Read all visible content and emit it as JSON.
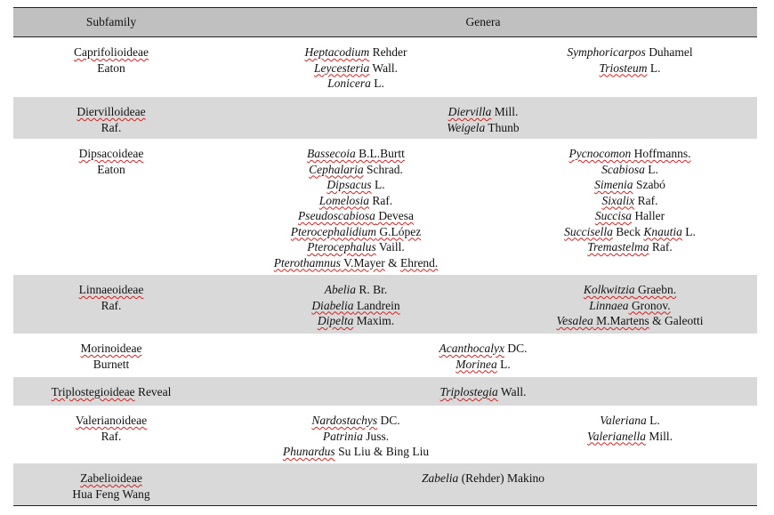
{
  "header": {
    "subfamily": "Subfamily",
    "genera": "Genera"
  },
  "rows": [
    {
      "subfamily": [
        [
          {
            "t": "Caprifolioideae",
            "sp": true
          }
        ],
        [
          {
            "t": "Eaton"
          }
        ]
      ],
      "shade": false,
      "height": 67,
      "col1": [
        [
          {
            "t": "Heptacodium",
            "i": true,
            "sp": true
          },
          {
            "t": " Rehder"
          }
        ],
        [
          {
            "t": "Leycesteria",
            "i": true,
            "sp": true
          },
          {
            "t": " Wall."
          }
        ],
        [
          {
            "t": "Lonicera",
            "i": true
          },
          {
            "t": " L."
          }
        ]
      ],
      "col2": [
        [
          {
            "t": "Symphoricarpos",
            "i": true
          },
          {
            "t": " Duhamel"
          }
        ],
        [
          {
            "t": "Triosteum",
            "i": true,
            "sp": true
          },
          {
            "t": " L."
          }
        ]
      ]
    },
    {
      "subfamily": [
        [
          {
            "t": "Diervilloideae",
            "sp": true
          }
        ],
        [
          {
            "t": "Raf."
          }
        ]
      ],
      "shade": true,
      "height": 47,
      "merged": [
        [
          {
            "t": "Diervilla",
            "i": true,
            "sp": true
          },
          {
            "t": " Mill."
          }
        ],
        [
          {
            "t": "Weigela",
            "i": true
          },
          {
            "t": " Thunb"
          }
        ]
      ]
    },
    {
      "subfamily": [
        [
          {
            "t": "Dipsacoideae",
            "sp": true
          }
        ],
        [
          {
            "t": "Eaton"
          }
        ]
      ],
      "shade": false,
      "height": 153,
      "col1": [
        [
          {
            "t": "Bassecoia",
            "i": true,
            "sp": true
          },
          {
            "t": " B.L.Burtt",
            "sp": true
          }
        ],
        [
          {
            "t": "Cephalaria",
            "i": true,
            "sp": true
          },
          {
            "t": " Schrad."
          }
        ],
        [
          {
            "t": "Dipsacus",
            "i": true,
            "sp": true
          },
          {
            "t": " L."
          }
        ],
        [
          {
            "t": "Lomelosia",
            "i": true,
            "sp": true
          },
          {
            "t": " Raf."
          }
        ],
        [
          {
            "t": "Pseudoscabiosa",
            "i": true,
            "sp": true
          },
          {
            "t": " Devesa",
            "sp": true
          }
        ],
        [
          {
            "t": "Pterocephalidium",
            "i": true,
            "sp": true
          },
          {
            "t": " G.López",
            "sp": true
          }
        ],
        [
          {
            "t": "Pterocephalus",
            "i": true,
            "sp": true
          },
          {
            "t": " Vaill."
          }
        ],
        [
          {
            "t": "Pterothamnus",
            "i": true,
            "sp": true
          },
          {
            "t": " V.Mayer",
            "sp": true
          },
          {
            "t": " & "
          },
          {
            "t": "Ehrend.",
            "sp": true
          }
        ]
      ],
      "col2": [
        [
          {
            "t": "Pycnocomon",
            "i": true,
            "sp": true
          },
          {
            "t": " Hoffmanns.",
            "sp": true
          }
        ],
        [
          {
            "t": "Scabiosa",
            "i": true
          },
          {
            "t": " L."
          }
        ],
        [
          {
            "t": "Simenia",
            "i": true,
            "sp": true
          },
          {
            "t": " Szabó"
          }
        ],
        [
          {
            "t": "Sixalix",
            "i": true,
            "sp": true
          },
          {
            "t": " Raf."
          }
        ],
        [
          {
            "t": "Succisa",
            "i": true,
            "sp": true
          },
          {
            "t": " Haller"
          }
        ],
        [
          {
            "t": "Succisella",
            "i": true,
            "sp": true
          },
          {
            "t": " Beck "
          },
          {
            "t": "Knautia",
            "i": true,
            "sp": true
          },
          {
            "t": " L."
          }
        ],
        [
          {
            "t": "Tremastelma",
            "i": true,
            "sp": true
          },
          {
            "t": " Raf."
          }
        ]
      ]
    },
    {
      "subfamily": [
        [
          {
            "t": "Linnaeoideae",
            "sp": true
          }
        ],
        [
          {
            "t": "Raf."
          }
        ]
      ],
      "shade": true,
      "height": 66,
      "col1": [
        [
          {
            "t": "Abelia",
            "i": true
          },
          {
            "t": " R. Br."
          }
        ],
        [
          {
            "t": "Diabelia",
            "i": true,
            "sp": true
          },
          {
            "t": " Landrein",
            "sp": true
          }
        ],
        [
          {
            "t": "Dipelta",
            "i": true,
            "sp": true
          },
          {
            "t": " Maxim."
          }
        ]
      ],
      "col2": [
        [
          {
            "t": "Kolkwitzia",
            "i": true,
            "sp": true
          },
          {
            "t": " Graebn.",
            "sp": true
          }
        ],
        [
          {
            "t": "Linnaea",
            "i": true
          },
          {
            "t": " Gronov.",
            "sp": true
          }
        ],
        [
          {
            "t": "Vesalea",
            "i": true,
            "sp": true
          },
          {
            "t": " M.Martens",
            "sp": true
          },
          {
            "t": " & Galeotti"
          }
        ]
      ]
    },
    {
      "subfamily": [
        [
          {
            "t": "Morinoideae",
            "sp": true
          }
        ],
        [
          {
            "t": "Burnett"
          }
        ]
      ],
      "shade": false,
      "height": 49,
      "merged": [
        [
          {
            "t": "Acanthocalyx",
            "i": true,
            "sp": true
          },
          {
            "t": " DC."
          }
        ],
        [
          {
            "t": "Morinea",
            "i": true,
            "sp": true
          },
          {
            "t": " L."
          }
        ]
      ]
    },
    {
      "subfamily": [
        [
          {
            "t": "Triplostegioideae",
            "sp": true
          },
          {
            "t": " Reveal"
          }
        ]
      ],
      "shade": true,
      "height": 32,
      "merged": [
        [
          {
            "t": "Triplostegia",
            "i": true,
            "sp": true
          },
          {
            "t": " Wall."
          }
        ]
      ]
    },
    {
      "subfamily": [
        [
          {
            "t": "Valerianoideae",
            "sp": true
          }
        ],
        [
          {
            "t": "Raf."
          }
        ]
      ],
      "shade": false,
      "height": 65,
      "col1": [
        [
          {
            "t": "Nardostachys",
            "i": true,
            "sp": true
          },
          {
            "t": " DC."
          }
        ],
        [
          {
            "t": "Patrinia",
            "i": true
          },
          {
            "t": " Juss."
          }
        ],
        [
          {
            "t": "Phunardus",
            "i": true,
            "sp": true
          },
          {
            "t": " Su Liu & Bing Liu"
          }
        ]
      ],
      "col2": [
        [
          {
            "t": "Valeriana",
            "i": true
          },
          {
            "t": " L."
          }
        ],
        [
          {
            "t": "Valerianella",
            "i": true,
            "sp": true
          },
          {
            "t": " Mill."
          }
        ]
      ]
    },
    {
      "subfamily": [
        [
          {
            "t": "Zabelioideae",
            "sp": true
          }
        ],
        [
          {
            "t": "Hua Feng Wang"
          }
        ]
      ],
      "shade": true,
      "height": 47,
      "merged": [
        [
          {
            "t": "Zabelia",
            "i": true
          },
          {
            "t": " (Rehder) Makino"
          }
        ]
      ]
    }
  ]
}
